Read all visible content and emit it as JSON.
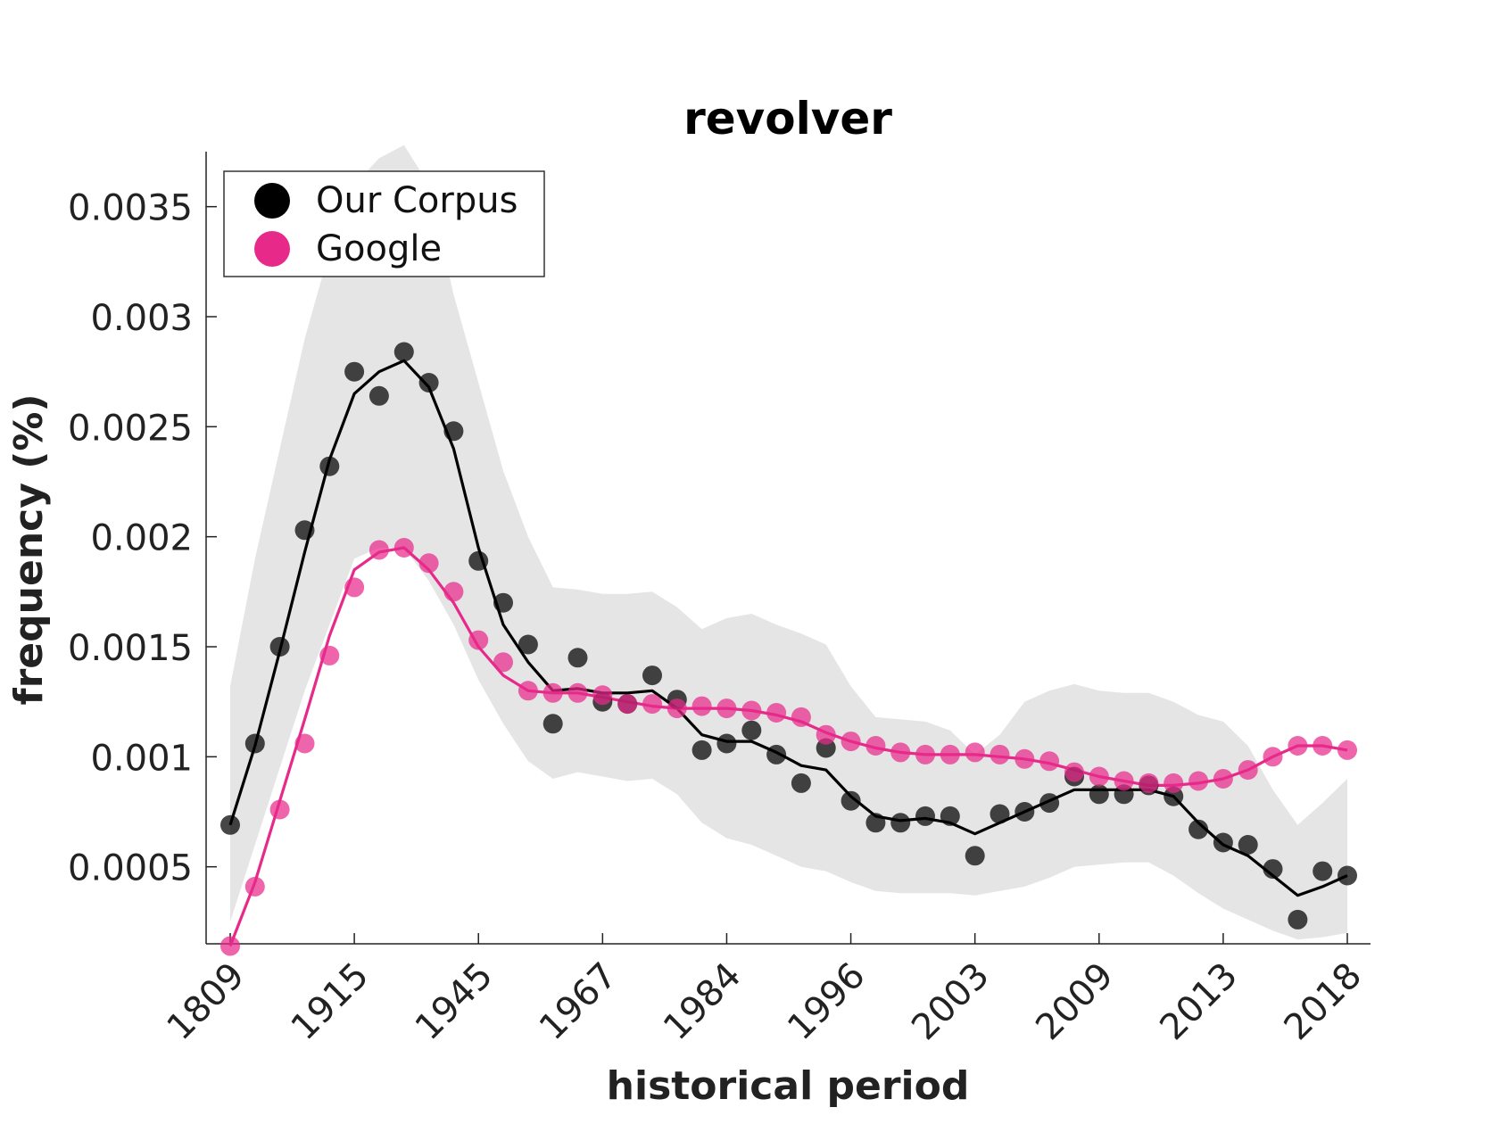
{
  "chart_data": {
    "type": "scatter",
    "title": "revolver",
    "xlabel": "historical period",
    "ylabel": "frequency (%)",
    "ylim": [
      0.00015,
      0.00375
    ],
    "yticks": [
      0.0005,
      0.001,
      0.0015,
      0.002,
      0.0025,
      0.003,
      0.0035
    ],
    "ytick_labels": [
      "0.0005",
      "0.001",
      "0.0015",
      "0.002",
      "0.0025",
      "0.003",
      "0.0035"
    ],
    "xticks": [
      {
        "index": 0,
        "label": "1809"
      },
      {
        "index": 5,
        "label": "1915"
      },
      {
        "index": 10,
        "label": "1945"
      },
      {
        "index": 15,
        "label": "1967"
      },
      {
        "index": 20,
        "label": "1984"
      },
      {
        "index": 25,
        "label": "1996"
      },
      {
        "index": 30,
        "label": "2003"
      },
      {
        "index": 35,
        "label": "2009"
      },
      {
        "index": 40,
        "label": "2013"
      },
      {
        "index": 45,
        "label": "2018"
      }
    ],
    "legend": {
      "placement": "top-left",
      "entries": [
        "Our Corpus",
        "Google"
      ]
    },
    "grid": false,
    "colors": {
      "our_corpus": "#000000",
      "google": "#e7298a",
      "band": "#e5e5e5"
    },
    "series": [
      {
        "name": "Our Corpus",
        "points": [
          0.00069,
          0.00106,
          0.0015,
          0.00203,
          0.00232,
          0.00275,
          0.00264,
          0.00284,
          0.0027,
          0.00248,
          0.00189,
          0.0017,
          0.00151,
          0.00115,
          0.00145,
          0.00125,
          0.00124,
          0.00137,
          0.00126,
          0.00103,
          0.00106,
          0.00112,
          0.00101,
          0.00088,
          0.00104,
          0.0008,
          0.0007,
          0.0007,
          0.00073,
          0.00073,
          0.00055,
          0.00074,
          0.00075,
          0.00079,
          0.00091,
          0.00083,
          0.00083,
          0.00087,
          0.00082,
          0.00067,
          0.00061,
          0.0006,
          0.00049,
          0.00026,
          0.00048,
          0.00046
        ],
        "smooth": [
          0.00069,
          0.00105,
          0.00148,
          0.00193,
          0.00235,
          0.00265,
          0.00275,
          0.0028,
          0.00268,
          0.0024,
          0.00195,
          0.0016,
          0.00143,
          0.0013,
          0.00131,
          0.00129,
          0.00129,
          0.0013,
          0.00122,
          0.0011,
          0.00107,
          0.00107,
          0.00102,
          0.00096,
          0.00094,
          0.00082,
          0.00073,
          0.00071,
          0.00072,
          0.0007,
          0.00065,
          0.0007,
          0.00075,
          0.0008,
          0.00085,
          0.00085,
          0.00085,
          0.00085,
          0.00082,
          0.0007,
          0.0006,
          0.00055,
          0.00046,
          0.00037,
          0.00041,
          0.00046
        ]
      },
      {
        "name": "Google",
        "points": [
          0.00014,
          0.00041,
          0.00076,
          0.00106,
          0.00146,
          0.00177,
          0.00194,
          0.00195,
          0.00188,
          0.00175,
          0.00153,
          0.00143,
          0.0013,
          0.00129,
          0.00129,
          0.00128,
          0.00124,
          0.00124,
          0.00122,
          0.00123,
          0.00122,
          0.00121,
          0.0012,
          0.00118,
          0.0011,
          0.00107,
          0.00105,
          0.00102,
          0.00101,
          0.00101,
          0.00102,
          0.00101,
          0.00099,
          0.00098,
          0.00093,
          0.00091,
          0.00089,
          0.00088,
          0.00088,
          0.00089,
          0.0009,
          0.00094,
          0.001,
          0.00105,
          0.00105,
          0.00103
        ],
        "smooth": [
          0.00014,
          0.00043,
          0.0008,
          0.00117,
          0.00155,
          0.00185,
          0.00193,
          0.00195,
          0.00185,
          0.0017,
          0.0015,
          0.00137,
          0.0013,
          0.00129,
          0.00129,
          0.00127,
          0.00125,
          0.00123,
          0.00122,
          0.00122,
          0.00122,
          0.00121,
          0.00119,
          0.00116,
          0.00111,
          0.00107,
          0.00104,
          0.00102,
          0.00101,
          0.00101,
          0.00101,
          0.001,
          0.00099,
          0.00097,
          0.00094,
          0.00091,
          0.00089,
          0.00087,
          0.00087,
          0.00088,
          0.0009,
          0.00094,
          0.001,
          0.00105,
          0.00105,
          0.00103
        ]
      }
    ],
    "band": {
      "lower": [
        0.00025,
        0.0006,
        0.00095,
        0.0013,
        0.0016,
        0.0019,
        0.00195,
        0.00195,
        0.0018,
        0.0016,
        0.00135,
        0.00115,
        0.00098,
        0.0009,
        0.00093,
        0.00091,
        0.00089,
        0.0009,
        0.00083,
        0.0007,
        0.00063,
        0.0006,
        0.00055,
        0.0005,
        0.00048,
        0.00043,
        0.00039,
        0.00038,
        0.00038,
        0.00038,
        0.00037,
        0.00039,
        0.00041,
        0.00045,
        0.0005,
        0.00051,
        0.00052,
        0.00052,
        0.00046,
        0.00038,
        0.00031,
        0.00026,
        0.00021,
        0.00017,
        0.00018,
        0.0002
      ],
      "upper": [
        0.00132,
        0.0019,
        0.0024,
        0.0029,
        0.0033,
        0.0036,
        0.00372,
        0.00378,
        0.0036,
        0.0031,
        0.0027,
        0.0023,
        0.002,
        0.00177,
        0.00176,
        0.00174,
        0.00174,
        0.00175,
        0.00168,
        0.00158,
        0.00163,
        0.00165,
        0.0016,
        0.00156,
        0.00151,
        0.00132,
        0.00118,
        0.00117,
        0.00116,
        0.00112,
        0.00101,
        0.0011,
        0.00125,
        0.0013,
        0.00133,
        0.0013,
        0.00129,
        0.00129,
        0.00125,
        0.00119,
        0.00116,
        0.00105,
        0.00085,
        0.00069,
        0.00079,
        0.0009
      ]
    }
  }
}
